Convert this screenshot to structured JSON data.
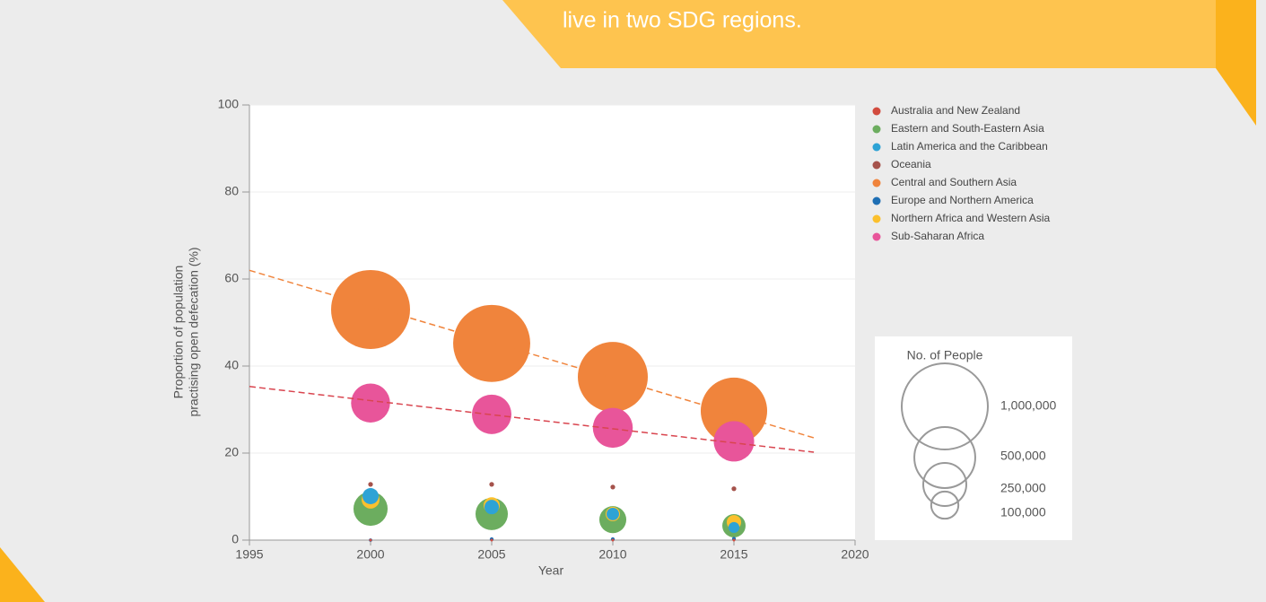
{
  "banner": {
    "text": "live in two SDG regions."
  },
  "chart_data": {
    "type": "scatter",
    "xlabel": "Year",
    "ylabel": [
      "Proportion of population",
      "practising open defecation (%)"
    ],
    "x": [
      2000,
      2005,
      2010,
      2015
    ],
    "xlim": [
      1995,
      2020
    ],
    "xticks": [
      1995,
      2000,
      2005,
      2010,
      2015,
      2020
    ],
    "ylim": [
      0,
      100
    ],
    "yticks": [
      0,
      20,
      40,
      60,
      80,
      100
    ],
    "grid": true,
    "legend": "right",
    "series": [
      {
        "name": "Australia and New Zealand",
        "color": "#d24b3e",
        "values": [
          0,
          0,
          0,
          0
        ],
        "sizes": [
          200,
          200,
          200,
          200
        ]
      },
      {
        "name": "Eastern and South-Eastern Asia",
        "color": "#6cad5f",
        "values": [
          7.2,
          6,
          4.7,
          3.3
        ],
        "sizes": [
          157000,
          141000,
          98000,
          73000
        ]
      },
      {
        "name": "Latin America and the Caribbean",
        "color": "#2ea3d5",
        "values": [
          10.1,
          7.6,
          6,
          2.9
        ],
        "sizes": [
          35000,
          28000,
          21000,
          16000
        ]
      },
      {
        "name": "Oceania",
        "color": "#a5524b",
        "values": [
          12.8,
          12.8,
          12.2,
          11.8
        ],
        "sizes": [
          3000,
          3000,
          3000,
          3000
        ]
      },
      {
        "name": "Central and Southern Asia",
        "color": "#f0843c",
        "values": [
          53,
          45.2,
          37.5,
          29.7
        ],
        "sizes": [
          840000,
          800000,
          660000,
          595000
        ]
      },
      {
        "name": "Europe and Northern America",
        "color": "#1f6fb4",
        "values": [
          0,
          0.2,
          0.2,
          0.3
        ],
        "sizes": [
          1500,
          2000,
          2000,
          2000
        ]
      },
      {
        "name": "Northern Africa and Western Asia",
        "color": "#fbc02d",
        "values": [
          9.3,
          8,
          6,
          4.1
        ],
        "sizes": [
          43000,
          35000,
          28000,
          28000
        ]
      },
      {
        "name": "Sub-Saharan Africa",
        "color": "#e8559a",
        "values": [
          31.5,
          28.9,
          25.8,
          22.7
        ],
        "sizes": [
          205000,
          210000,
          215000,
          220000
        ]
      }
    ],
    "trend_lines": [
      {
        "color": "#f0843c",
        "x": [
          1995,
          2018.3
        ],
        "y": [
          62,
          23.5
        ]
      },
      {
        "color": "#d9454f",
        "x": [
          1995,
          2018.3
        ],
        "y": [
          35.3,
          20.2
        ]
      }
    ],
    "size_legend": {
      "title": "No. of People",
      "ticks": [
        {
          "value": 1000000,
          "label": "1,000,000"
        },
        {
          "value": 500000,
          "label": "500,000"
        },
        {
          "value": 250000,
          "label": "250,000"
        },
        {
          "value": 100000,
          "label": "100,000"
        }
      ]
    }
  }
}
